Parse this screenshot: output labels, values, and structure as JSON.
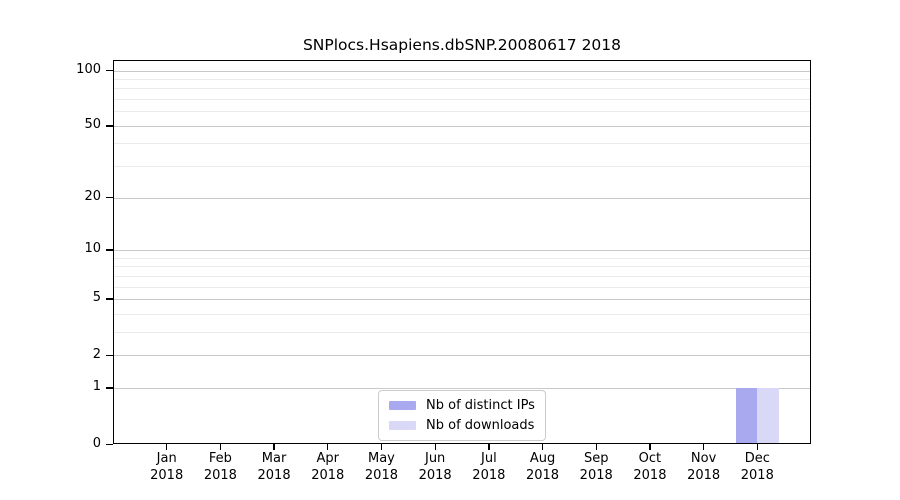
{
  "page": {
    "background": "#ffffff"
  },
  "chart_data": {
    "type": "bar",
    "title": "SNPlocs.Hsapiens.dbSNP.20080617 2018",
    "xlabel": "",
    "ylabel": "",
    "categories": [
      {
        "month": "Jan",
        "year": "2018"
      },
      {
        "month": "Feb",
        "year": "2018"
      },
      {
        "month": "Mar",
        "year": "2018"
      },
      {
        "month": "Apr",
        "year": "2018"
      },
      {
        "month": "May",
        "year": "2018"
      },
      {
        "month": "Jun",
        "year": "2018"
      },
      {
        "month": "Jul",
        "year": "2018"
      },
      {
        "month": "Aug",
        "year": "2018"
      },
      {
        "month": "Sep",
        "year": "2018"
      },
      {
        "month": "Oct",
        "year": "2018"
      },
      {
        "month": "Nov",
        "year": "2018"
      },
      {
        "month": "Dec",
        "year": "2018"
      }
    ],
    "series": [
      {
        "name": "Nb of distinct IPs",
        "color": "#a9a9f0",
        "values": [
          0,
          0,
          0,
          0,
          0,
          0,
          0,
          0,
          0,
          0,
          0,
          1
        ]
      },
      {
        "name": "Nb of downloads",
        "color": "#d9d9f7",
        "values": [
          0,
          0,
          0,
          0,
          0,
          0,
          0,
          0,
          0,
          0,
          0,
          1
        ]
      }
    ],
    "yscale": "log1p",
    "ylim": [
      0,
      114
    ],
    "y_major_ticks": [
      0,
      1,
      2,
      5,
      10,
      20,
      50,
      100
    ],
    "y_minor_ticks": [
      3,
      4,
      6,
      7,
      8,
      9,
      30,
      40,
      60,
      70,
      80,
      90
    ],
    "grid": "horizontal",
    "legend_position": "inside-bottom-center",
    "colors": {
      "axis": "#000000",
      "major_grid": "#c9c9c9",
      "minor_grid": "#ebebeb",
      "text": "#000000"
    }
  }
}
